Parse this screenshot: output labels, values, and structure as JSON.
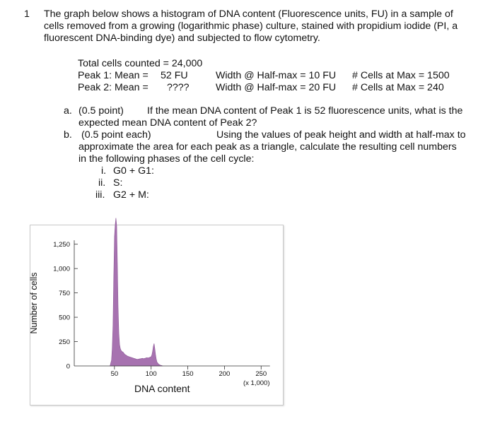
{
  "question": {
    "number": "1",
    "intro_lines": [
      "The graph below shows a histogram of DNA content (Fluorescence units, FU) in a sample of",
      "cells removed from a growing (logarithmic phase) culture, stained with propidium iodide (PI, a",
      "fluorescent DNA-binding dye) and subjected to flow cytometry."
    ]
  },
  "stats": {
    "total": "Total cells counted = 24,000",
    "peak1_label": "Peak 1: Mean =",
    "peak1_mean": "52 FU",
    "peak1_width": "Width @ Half-max = 10 FU",
    "peak1_cells": "# Cells at Max = 1500",
    "peak2_label": "Peak 2: Mean =",
    "peak2_mean": "????",
    "peak2_width": "Width @ Half-max = 20 FU",
    "peak2_cells": "# Cells at Max =  240"
  },
  "parts": {
    "a_marker": "a.",
    "a_line1_left": "(0.5 point)",
    "a_line1_right": "If the mean DNA content of Peak 1 is 52 fluorescence units, what is the",
    "a_line2": "expected mean DNA content of Peak 2?",
    "b_marker": "b.",
    "b_line1_left": "(0.5   point each)",
    "b_line1_right": "Using the values of peak height and width at half-max to",
    "b_line2": "approximate the area for each peak as a triangle, calculate the resulting cell numbers",
    "b_line3": "in the following phases of the cell cycle:",
    "sub_items": [
      {
        "marker": "i.",
        "text": "G0 + G1:"
      },
      {
        "marker": "ii.",
        "text": "S:"
      },
      {
        "marker": "iii.",
        "text": "G2 + M:"
      }
    ]
  },
  "chart_data": {
    "type": "area",
    "ylabel": "Number of cells",
    "xlabel": "DNA content",
    "x_unit_note": "(x 1,000)",
    "xlim": [
      0,
      270
    ],
    "ylim": [
      0,
      1400
    ],
    "x_ticks": [
      "50",
      "100",
      "150",
      "200",
      "250"
    ],
    "y_ticks": [
      "0",
      "250",
      "500",
      "750",
      "1,000",
      "1,250"
    ],
    "fill_color": "#a772b0",
    "x": [
      44,
      46,
      47,
      48,
      49,
      50,
      51,
      52,
      53,
      54,
      55,
      56,
      57,
      58,
      59,
      60,
      62,
      64,
      66,
      68,
      70,
      72,
      74,
      76,
      78,
      80,
      82,
      84,
      86,
      88,
      90,
      92,
      94,
      96,
      98,
      100,
      101,
      102,
      103,
      104,
      105,
      106,
      107,
      108,
      110,
      112,
      114,
      116
    ],
    "y": [
      0,
      60,
      180,
      420,
      900,
      1330,
      1450,
      1520,
      1440,
      1050,
      600,
      330,
      220,
      180,
      160,
      150,
      140,
      120,
      110,
      100,
      95,
      90,
      85,
      80,
      75,
      70,
      68,
      72,
      75,
      78,
      75,
      80,
      85,
      82,
      88,
      95,
      110,
      150,
      200,
      230,
      180,
      120,
      70,
      40,
      20,
      10,
      5,
      0
    ]
  }
}
